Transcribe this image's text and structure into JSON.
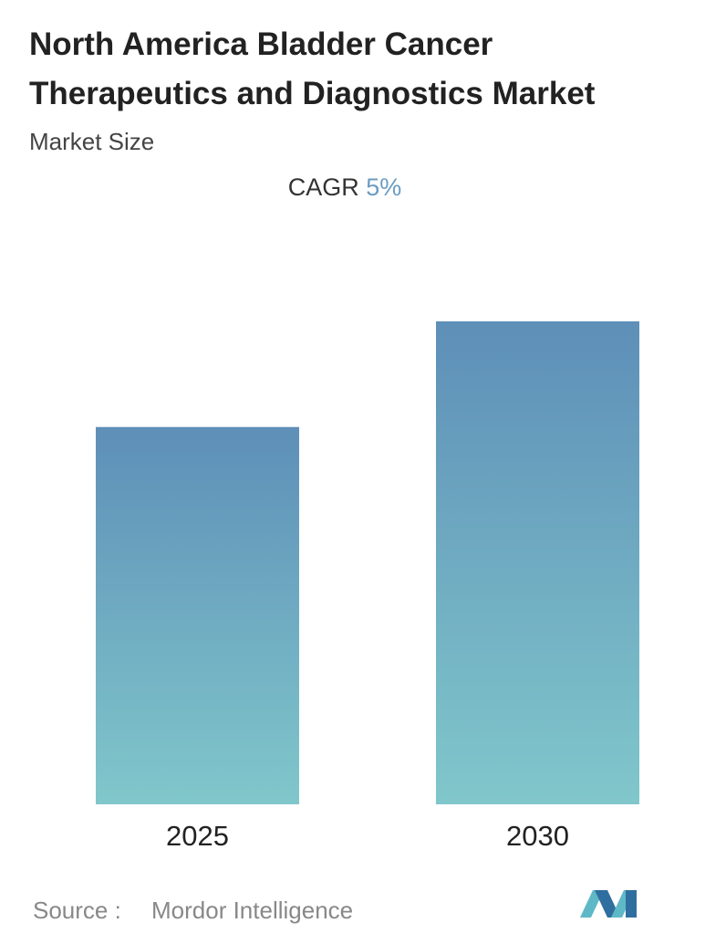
{
  "chart_data": {
    "type": "bar",
    "title": "North America Bladder Cancer Therapeutics and Diagnostics Market",
    "subtitle": "Market Size",
    "cagr_label": "CAGR",
    "cagr_value": "5%",
    "categories": [
      "2025",
      "2030"
    ],
    "values": [
      100,
      128
    ],
    "color": [
      "#5e8fb8",
      "#80c7cb"
    ],
    "source_label": "Source :",
    "source": "Mordor Intelligence"
  }
}
